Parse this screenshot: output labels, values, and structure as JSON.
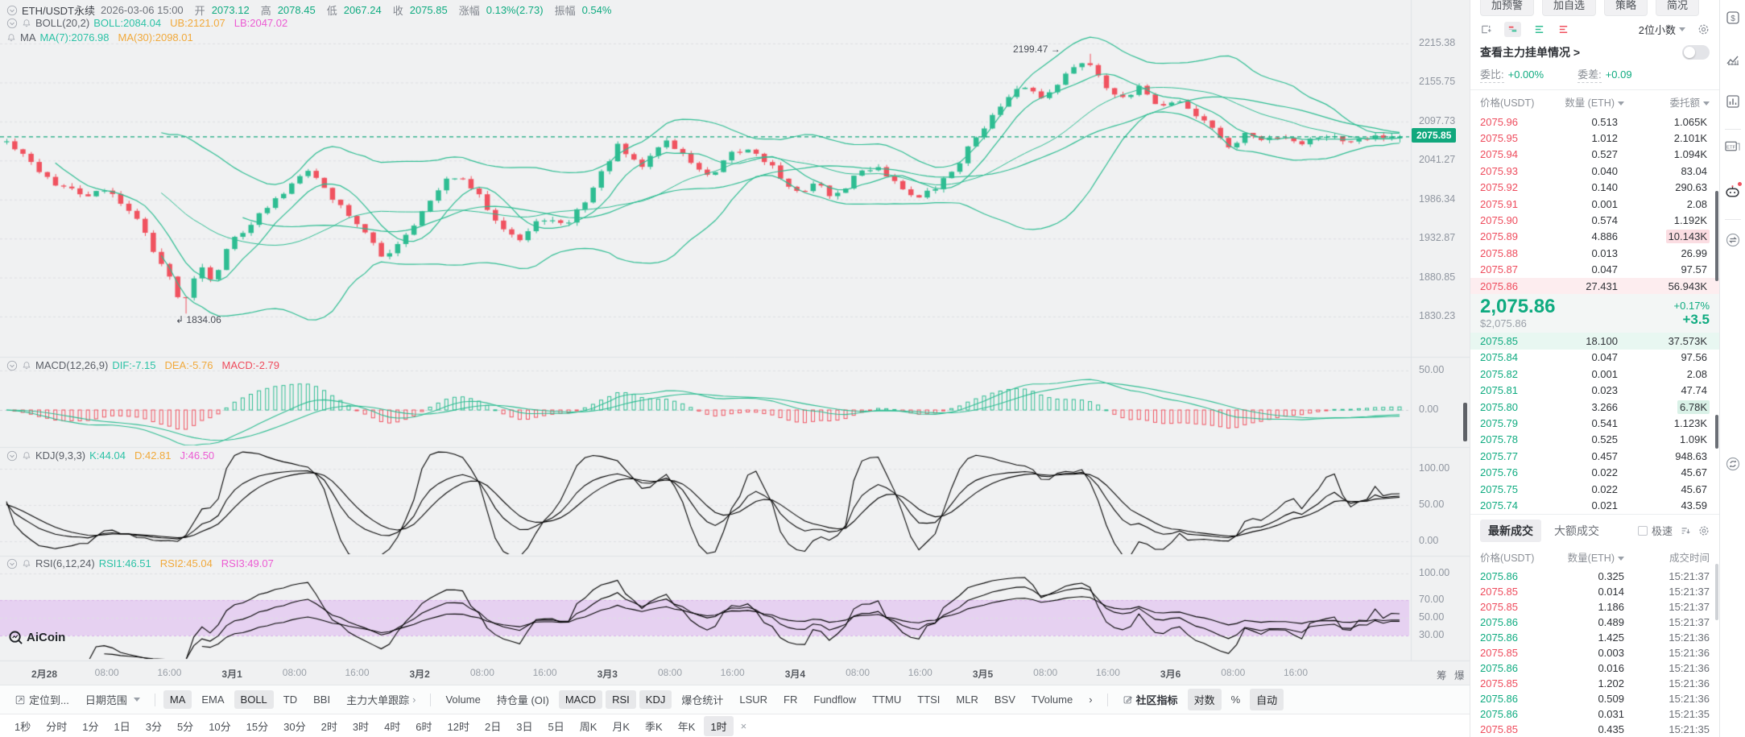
{
  "meta": {
    "watermark": "AiCoin"
  },
  "header": {
    "symbol": "ETH/USDT永续",
    "datetime": "2026-03-06 15:00",
    "fields": [
      {
        "label": "开",
        "value": "2073.12"
      },
      {
        "label": "高",
        "value": "2078.45"
      },
      {
        "label": "低",
        "value": "2067.24"
      },
      {
        "label": "收",
        "value": "2075.85"
      },
      {
        "label": "涨幅",
        "value": "0.13%(2.73)"
      },
      {
        "label": "振幅",
        "value": "0.54%"
      }
    ]
  },
  "overlays": {
    "boll": {
      "name": "BOLL(20,2)",
      "values": [
        {
          "text": "BOLL:2084.04",
          "color": "teal"
        },
        {
          "text": "UB:2121.07",
          "color": "orange"
        },
        {
          "text": "LB:2047.02",
          "color": "magenta"
        }
      ]
    },
    "ma": {
      "name": "MA",
      "values": [
        {
          "text": "MA(7):2076.98",
          "color": "teal"
        },
        {
          "text": "MA(30):2098.01",
          "color": "orange"
        }
      ]
    },
    "macd": {
      "name": "MACD(12,26,9)",
      "values": [
        {
          "text": "DIF:-7.15",
          "color": "teal"
        },
        {
          "text": "DEA:-5.76",
          "color": "orange"
        },
        {
          "text": "MACD:-2.79",
          "color": "red"
        }
      ]
    },
    "kdj": {
      "name": "KDJ(9,3,3)",
      "values": [
        {
          "text": "K:44.04",
          "color": "teal"
        },
        {
          "text": "D:42.81",
          "color": "orange"
        },
        {
          "text": "J:46.50",
          "color": "magenta"
        }
      ]
    },
    "rsi": {
      "name": "RSI(6,12,24)",
      "values": [
        {
          "text": "RSI1:46.51",
          "color": "teal"
        },
        {
          "text": "RSI2:45.04",
          "color": "orange"
        },
        {
          "text": "RSI3:49.07",
          "color": "magenta"
        }
      ]
    }
  },
  "axes": {
    "main": [
      "2215.38",
      "2155.75",
      "2097.73",
      "2041.27",
      "1986.34",
      "1932.87",
      "1880.85",
      "1830.23"
    ],
    "badge": "2075.85",
    "macd": [
      "50.00",
      "0.00"
    ],
    "kdj": [
      "100.00",
      "50.00",
      "0.00"
    ],
    "rsi": [
      "100.00",
      "70.00",
      "50.00",
      "30.00"
    ],
    "x": [
      {
        "t": "2月28",
        "d": 1
      },
      {
        "t": "08:00"
      },
      {
        "t": "16:00"
      },
      {
        "t": "3月1",
        "d": 1
      },
      {
        "t": "08:00"
      },
      {
        "t": "16:00"
      },
      {
        "t": "3月2",
        "d": 1
      },
      {
        "t": "08:00"
      },
      {
        "t": "16:00"
      },
      {
        "t": "3月3",
        "d": 1
      },
      {
        "t": "08:00"
      },
      {
        "t": "16:00"
      },
      {
        "t": "3月4",
        "d": 1
      },
      {
        "t": "08:00"
      },
      {
        "t": "16:00"
      },
      {
        "t": "3月5",
        "d": 1
      },
      {
        "t": "08:00"
      },
      {
        "t": "16:00"
      },
      {
        "t": "3月6",
        "d": 1
      },
      {
        "t": "08:00"
      },
      {
        "t": "16:00"
      }
    ],
    "x_extra": [
      "筹",
      "爆"
    ]
  },
  "annotations": {
    "high": "2199.47",
    "high_arrow": "→",
    "low": "1834.06",
    "low_arrow": "↲"
  },
  "chart_data": {
    "type": "candlestick",
    "symbol": "ETH/USDT perpetual",
    "interval": "1时",
    "y_scale": "log",
    "y_ticks": [
      2215.38,
      2155.75,
      2097.73,
      2041.27,
      1986.34,
      1932.87,
      1880.85,
      1830.23
    ],
    "current_price": 2075.85,
    "last_ohlc": {
      "time": "2026-03-06 15:00",
      "open": 2073.12,
      "high": 2078.45,
      "low": 2067.24,
      "close": 2075.85,
      "change_pct": 0.13,
      "change": 2.73,
      "amplitude_pct": 0.54
    },
    "extremes": {
      "high": 2199.47,
      "low": 1834.06
    },
    "x_ticks": [
      "2月28",
      "08:00",
      "16:00",
      "3月1",
      "08:00",
      "16:00",
      "3月2",
      "08:00",
      "16:00",
      "3月3",
      "08:00",
      "16:00",
      "3月4",
      "08:00",
      "16:00",
      "3月5",
      "08:00",
      "16:00",
      "3月6",
      "08:00",
      "16:00"
    ],
    "n_candles": 172,
    "price_path": [
      [
        0.0,
        2068
      ],
      [
        0.015,
        2042
      ],
      [
        0.035,
        2008
      ],
      [
        0.055,
        1992
      ],
      [
        0.075,
        1998
      ],
      [
        0.095,
        1955
      ],
      [
        0.112,
        1896
      ],
      [
        0.127,
        1845
      ],
      [
        0.138,
        1902
      ],
      [
        0.148,
        1878
      ],
      [
        0.162,
        1932
      ],
      [
        0.18,
        1962
      ],
      [
        0.2,
        1998
      ],
      [
        0.215,
        2034
      ],
      [
        0.232,
        1992
      ],
      [
        0.25,
        1958
      ],
      [
        0.27,
        1906
      ],
      [
        0.285,
        1936
      ],
      [
        0.302,
        1978
      ],
      [
        0.32,
        2022
      ],
      [
        0.335,
        2000
      ],
      [
        0.352,
        1958
      ],
      [
        0.368,
        1930
      ],
      [
        0.385,
        1962
      ],
      [
        0.4,
        1948
      ],
      [
        0.418,
        1992
      ],
      [
        0.438,
        2062
      ],
      [
        0.455,
        2030
      ],
      [
        0.472,
        2072
      ],
      [
        0.49,
        2042
      ],
      [
        0.505,
        2014
      ],
      [
        0.52,
        2050
      ],
      [
        0.535,
        2058
      ],
      [
        0.55,
        2032
      ],
      [
        0.565,
        1992
      ],
      [
        0.58,
        2010
      ],
      [
        0.595,
        1988
      ],
      [
        0.61,
        2022
      ],
      [
        0.625,
        2034
      ],
      [
        0.64,
        2006
      ],
      [
        0.655,
        1988
      ],
      [
        0.668,
        2004
      ],
      [
        0.682,
        2034
      ],
      [
        0.7,
        2088
      ],
      [
        0.715,
        2122
      ],
      [
        0.73,
        2152
      ],
      [
        0.743,
        2132
      ],
      [
        0.757,
        2162
      ],
      [
        0.775,
        2192
      ],
      [
        0.79,
        2150
      ],
      [
        0.802,
        2128
      ],
      [
        0.815,
        2150
      ],
      [
        0.828,
        2118
      ],
      [
        0.84,
        2132
      ],
      [
        0.855,
        2104
      ],
      [
        0.868,
        2086
      ],
      [
        0.878,
        2054
      ],
      [
        0.888,
        2082
      ],
      [
        0.9,
        2070
      ],
      [
        0.915,
        2078
      ],
      [
        0.93,
        2066
      ],
      [
        0.945,
        2080
      ],
      [
        0.96,
        2070
      ],
      [
        0.978,
        2077
      ],
      [
        1.0,
        2075.85
      ]
    ],
    "indicators": {
      "boll": {
        "period": 20,
        "k": 2,
        "mid": 2084.04,
        "ub": 2121.07,
        "lb": 2047.02
      },
      "ma": {
        "ma7": 2076.98,
        "ma30": 2098.01
      },
      "macd": {
        "fast": 12,
        "slow": 26,
        "signal": 9,
        "dif": -7.15,
        "dea": -5.76,
        "macd": -2.79,
        "axis": [
          50,
          0
        ]
      },
      "kdj": {
        "params": [
          9,
          3,
          3
        ],
        "k": 44.04,
        "d": 42.81,
        "j": 46.5,
        "axis": [
          100,
          50,
          0
        ]
      },
      "rsi": {
        "periods": [
          6,
          12,
          24
        ],
        "rsi1": 46.51,
        "rsi2": 45.04,
        "rsi3": 49.07,
        "axis": [
          100,
          70,
          50,
          30
        ],
        "band": [
          30,
          70
        ]
      }
    }
  },
  "toolbar": {
    "items": [
      {
        "label": "定位到...",
        "icon": "jump"
      },
      {
        "label": "日期范围",
        "caret": true
      },
      {
        "sep": true
      },
      {
        "label": "MA",
        "active": true
      },
      {
        "label": "EMA"
      },
      {
        "label": "BOLL",
        "active": true
      },
      {
        "label": "TD"
      },
      {
        "label": "BBI"
      },
      {
        "label": "主力大单跟踪",
        "arrow": "›"
      },
      {
        "sep": true
      },
      {
        "label": "Volume"
      },
      {
        "label": "持仓量 (OI)"
      },
      {
        "label": "MACD",
        "active": true
      },
      {
        "label": "RSI",
        "active": true
      },
      {
        "label": "KDJ",
        "active": true
      },
      {
        "label": "爆仓统计"
      },
      {
        "label": "LSUR"
      },
      {
        "label": "FR"
      },
      {
        "label": "Fundflow"
      },
      {
        "label": "TTMU"
      },
      {
        "label": "TTSI"
      },
      {
        "label": "MLR"
      },
      {
        "label": "BSV"
      },
      {
        "label": "TVolume"
      },
      {
        "label": "›"
      },
      {
        "sep": true
      },
      {
        "label": "社区指标",
        "edit": true,
        "bold": true
      },
      {
        "label": "对数",
        "active": true
      },
      {
        "label": "%"
      },
      {
        "label": "自动",
        "active": true
      }
    ]
  },
  "timeframes": {
    "items": [
      "1秒",
      "分时",
      "1分",
      "1日",
      "3分",
      "5分",
      "10分",
      "15分",
      "30分",
      "2时",
      "3时",
      "4时",
      "6时",
      "12时",
      "2日",
      "3日",
      "5日",
      "周K",
      "月K",
      "季K",
      "年K"
    ],
    "active": "1时",
    "close": "×"
  },
  "panel": {
    "top_buttons": [
      "加预警",
      "加自选",
      "策略",
      "简况"
    ],
    "decimals": "2位小数",
    "link": "查看主力挂单情况 >",
    "stats": {
      "weibi_label": "委比:",
      "weibi": "+0.00%",
      "weicha_label": "委差:",
      "weicha": "+0.09"
    },
    "book_cols": [
      "价格(USDT)",
      "数量 (ETH)",
      "委托额"
    ],
    "asks": [
      {
        "p": "2075.96",
        "q": "0.513",
        "a": "1.065K"
      },
      {
        "p": "2075.95",
        "q": "1.012",
        "a": "2.101K"
      },
      {
        "p": "2075.94",
        "q": "0.527",
        "a": "1.094K"
      },
      {
        "p": "2075.93",
        "q": "0.040",
        "a": "83.04"
      },
      {
        "p": "2075.92",
        "q": "0.140",
        "a": "290.63"
      },
      {
        "p": "2075.91",
        "q": "0.001",
        "a": "2.08"
      },
      {
        "p": "2075.90",
        "q": "0.574",
        "a": "1.192K"
      },
      {
        "p": "2075.89",
        "q": "4.886",
        "a": "10.143K",
        "hl": "amt"
      },
      {
        "p": "2075.88",
        "q": "0.013",
        "a": "26.99"
      },
      {
        "p": "2075.87",
        "q": "0.047",
        "a": "97.57"
      },
      {
        "p": "2075.86",
        "q": "27.431",
        "a": "56.943K",
        "hl": "row"
      }
    ],
    "ticker": {
      "price": "2,075.86",
      "usd": "$2,075.86",
      "pct": "+0.17%",
      "diff": "+3.5"
    },
    "bids": [
      {
        "p": "2075.85",
        "q": "18.100",
        "a": "37.573K",
        "hl": "row"
      },
      {
        "p": "2075.84",
        "q": "0.047",
        "a": "97.56"
      },
      {
        "p": "2075.82",
        "q": "0.001",
        "a": "2.08"
      },
      {
        "p": "2075.81",
        "q": "0.023",
        "a": "47.74"
      },
      {
        "p": "2075.80",
        "q": "3.266",
        "a": "6.78K",
        "hl": "amt"
      },
      {
        "p": "2075.79",
        "q": "0.541",
        "a": "1.123K"
      },
      {
        "p": "2075.78",
        "q": "0.525",
        "a": "1.09K"
      },
      {
        "p": "2075.77",
        "q": "0.457",
        "a": "948.63"
      },
      {
        "p": "2075.76",
        "q": "0.022",
        "a": "45.67"
      },
      {
        "p": "2075.75",
        "q": "0.022",
        "a": "45.67"
      },
      {
        "p": "2075.74",
        "q": "0.021",
        "a": "43.59"
      }
    ],
    "trades_tabs": {
      "active": "最新成交",
      "other": "大额成交",
      "speed": "极速"
    },
    "trade_cols": [
      "价格(USDT)",
      "数量(ETH)",
      "成交时间"
    ],
    "trades": [
      {
        "p": "2075.86",
        "q": "0.325",
        "t": "15:21:37",
        "s": "g"
      },
      {
        "p": "2075.85",
        "q": "0.014",
        "t": "15:21:37",
        "s": "r"
      },
      {
        "p": "2075.85",
        "q": "1.186",
        "t": "15:21:37",
        "s": "r"
      },
      {
        "p": "2075.86",
        "q": "0.489",
        "t": "15:21:37",
        "s": "g"
      },
      {
        "p": "2075.86",
        "q": "1.425",
        "t": "15:21:36",
        "s": "g"
      },
      {
        "p": "2075.85",
        "q": "0.003",
        "t": "15:21:36",
        "s": "r"
      },
      {
        "p": "2075.86",
        "q": "0.016",
        "t": "15:21:36",
        "s": "g"
      },
      {
        "p": "2075.85",
        "q": "1.202",
        "t": "15:21:36",
        "s": "r"
      },
      {
        "p": "2075.86",
        "q": "0.509",
        "t": "15:21:36",
        "s": "g"
      },
      {
        "p": "2075.86",
        "q": "0.031",
        "t": "15:21:35",
        "s": "g"
      },
      {
        "p": "2075.85",
        "q": "0.435",
        "t": "15:21:35",
        "s": "r"
      }
    ]
  }
}
